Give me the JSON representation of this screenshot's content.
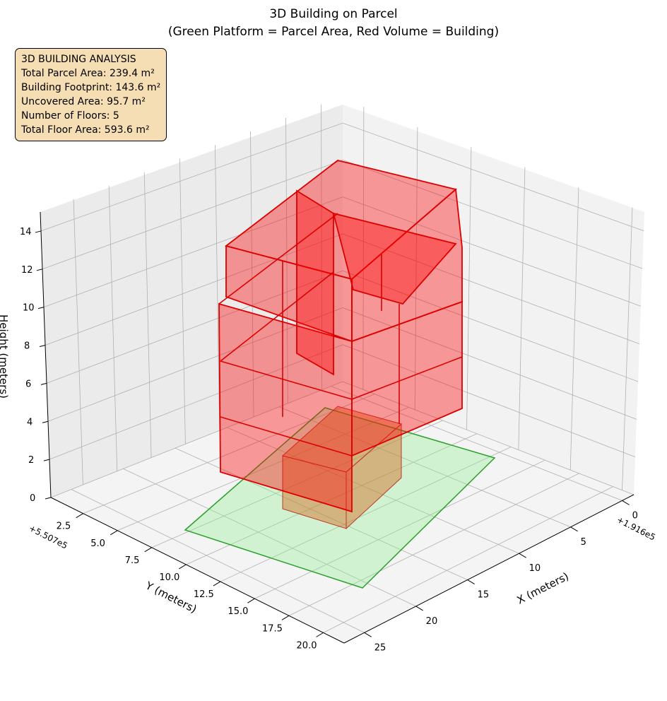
{
  "chart_data": {
    "type": "3d-polygons",
    "title": "3D Building on Parcel",
    "subtitle": "(Green Platform = Parcel Area, Red Volume = Building)",
    "xlabel": "X (meters)",
    "ylabel": "Y (meters)",
    "zlabel": "Height (meters)",
    "x_offset": "+1.916e5",
    "y_offset": "+5.507e5",
    "x_ticks": [
      "0",
      "5",
      "10",
      "15",
      "20",
      "25"
    ],
    "y_ticks": [
      "2.5",
      "5.0",
      "7.5",
      "10.0",
      "12.5",
      "15.0",
      "17.5",
      "20.0"
    ],
    "z_ticks": [
      "0",
      "2",
      "4",
      "6",
      "8",
      "10",
      "12",
      "14"
    ],
    "zlim": [
      0,
      15
    ],
    "colors": {
      "parcel": "#90ee90",
      "parcel_edge": "#2ca02c",
      "building": "#ff0000"
    }
  },
  "info": {
    "heading": "3D BUILDING ANALYSIS",
    "lines": [
      "Total Parcel Area: 239.4 m²",
      "Building Footprint: 143.6 m²",
      "Uncovered Area: 95.7 m²",
      "Number of Floors: 5",
      "Total Floor Area: 593.6 m²"
    ]
  }
}
